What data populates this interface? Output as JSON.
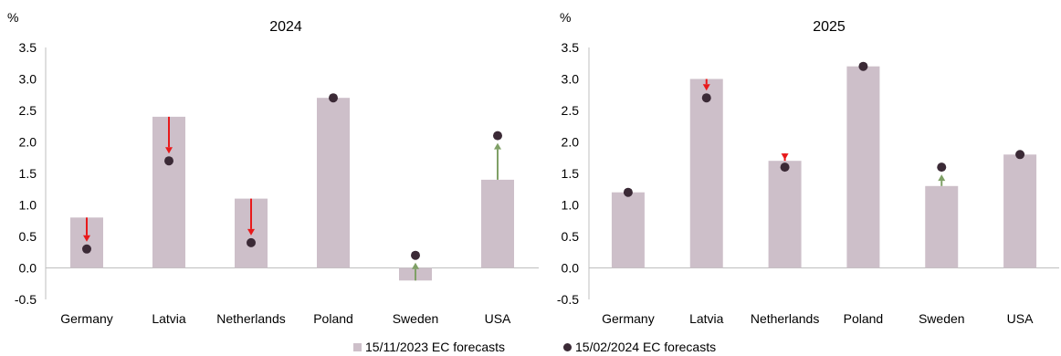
{
  "chart_data": [
    {
      "type": "bar",
      "title": "2024",
      "ylabel": "%",
      "ylim": [
        -0.5,
        3.5
      ],
      "yticks": [
        "-0.5",
        "0.0",
        "0.5",
        "1.0",
        "1.5",
        "2.0",
        "2.5",
        "3.0",
        "3.5"
      ],
      "categories": [
        "Germany",
        "Latvia",
        "Netherlands",
        "Poland",
        "Sweden",
        "USA"
      ],
      "series": [
        {
          "name": "15/11/2023 EC forecasts",
          "kind": "bar",
          "values": [
            0.8,
            2.4,
            1.1,
            2.7,
            -0.2,
            1.4
          ]
        },
        {
          "name": "15/02/2024 EC forecasts",
          "kind": "dot",
          "values": [
            0.3,
            1.7,
            0.4,
            2.7,
            0.2,
            2.1
          ]
        }
      ]
    },
    {
      "type": "bar",
      "title": "2025",
      "ylabel": "%",
      "ylim": [
        -0.5,
        3.5
      ],
      "yticks": [
        "-0.5",
        "0.0",
        "0.5",
        "1.0",
        "1.5",
        "2.0",
        "2.5",
        "3.0",
        "3.5"
      ],
      "categories": [
        "Germany",
        "Latvia",
        "Netherlands",
        "Poland",
        "Sweden",
        "USA"
      ],
      "series": [
        {
          "name": "15/11/2023 EC forecasts",
          "kind": "bar",
          "values": [
            1.2,
            3.0,
            1.7,
            3.2,
            1.3,
            1.8
          ]
        },
        {
          "name": "15/02/2024 EC forecasts",
          "kind": "dot",
          "values": [
            1.2,
            2.7,
            1.6,
            3.2,
            1.6,
            1.8
          ]
        }
      ]
    }
  ],
  "legend": [
    {
      "label": "15/11/2023 EC forecasts"
    },
    {
      "label": "15/02/2024 EC forecasts"
    }
  ],
  "colors": {
    "bar": "#cdbfc9",
    "dot": "#3b2a36",
    "down_arrow": "#e8191b",
    "up_arrow": "#7fa066",
    "axis": "#bfbfbf"
  }
}
